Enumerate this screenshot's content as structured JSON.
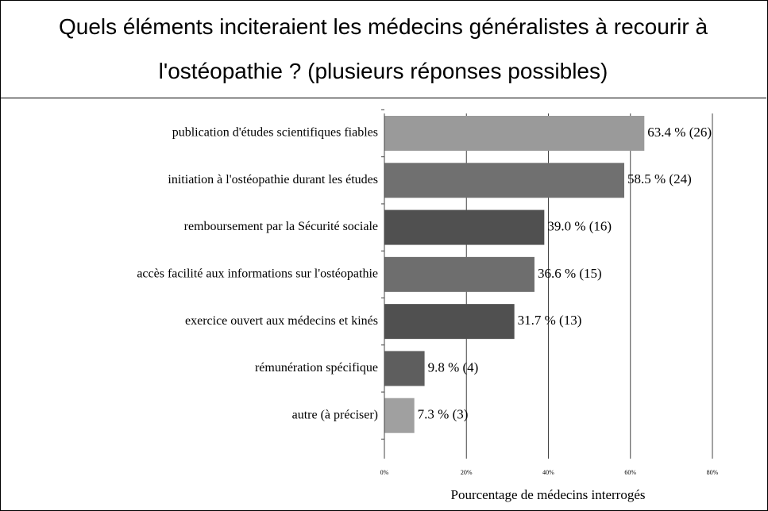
{
  "chart_data": {
    "type": "barh",
    "title": "Quels éléments inciteraient les médecins généralistes à recourir à l'ostéopathie ? (plusieurs réponses possibles)",
    "categories": [
      "publication d'études scientifiques fiables",
      "initiation à l'ostéopathie durant les études",
      "remboursement par la Sécurité sociale",
      "accès facilité aux informations sur l'ostéopathie",
      "exercice ouvert aux médecins et kinés",
      "rémunération spécifique",
      "autre (à préciser)"
    ],
    "values": [
      63.4,
      58.5,
      39.0,
      36.6,
      31.7,
      9.8,
      7.3
    ],
    "value_labels": [
      "63.4 % (26)",
      "58.5 % (24)",
      "39.0 % (16)",
      "36.6 % (15)",
      "31.7 % (13)",
      "9.8 % (4)",
      "7.3 % (3)"
    ],
    "colors": [
      "#9a9a9a",
      "#707070",
      "#505050",
      "#6e6e6e",
      "#505050",
      "#5e5e5e",
      "#a0a0a0"
    ],
    "xlabel": "Pourcentage de médecins interrogés",
    "xlim": [
      0,
      80
    ],
    "xticks": [
      {
        "value": 0,
        "label": "0%"
      },
      {
        "value": 20,
        "label": "20%"
      },
      {
        "value": 40,
        "label": "40%"
      },
      {
        "value": 60,
        "label": "60%"
      },
      {
        "value": 80,
        "label": "80%"
      }
    ],
    "grid": true
  }
}
